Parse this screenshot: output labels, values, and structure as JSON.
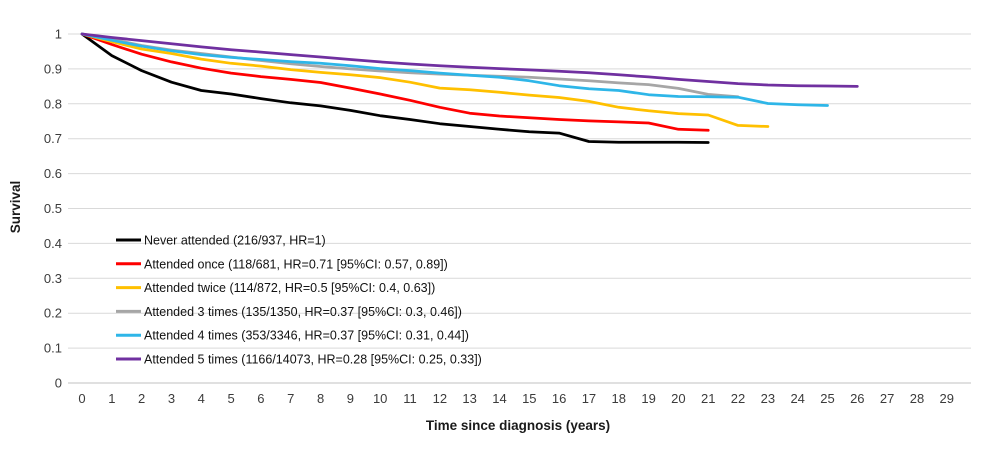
{
  "figure": {
    "background": "#ffffff",
    "gridline_color": "#d9d9d9",
    "axis_line_color": "#c0c0c0",
    "tick_label_color": "#3b3b3b"
  },
  "chart_data": {
    "type": "line",
    "title": "",
    "xlabel": "Time since diagnosis (years)",
    "ylabel": "Survival",
    "xlim": [
      0,
      29
    ],
    "ylim": [
      0,
      1
    ],
    "x_ticks": [
      0,
      1,
      2,
      3,
      4,
      5,
      6,
      7,
      8,
      9,
      10,
      11,
      12,
      13,
      14,
      15,
      16,
      17,
      18,
      19,
      20,
      21,
      22,
      23,
      24,
      25,
      26,
      27,
      28,
      29
    ],
    "y_ticks": [
      "0",
      "0.1",
      "0.2",
      "0.3",
      "0.4",
      "0.5",
      "0.6",
      "0.7",
      "0.8",
      "0.9",
      "1"
    ],
    "grid": "horizontal",
    "legend_position": "inside-left-middle",
    "x_step_years": 1,
    "series": [
      {
        "name": "Never attended (216/937, HR=1)",
        "color": "#000000",
        "x_start": 0,
        "values": [
          1,
          0.938,
          0.895,
          0.862,
          0.838,
          0.828,
          0.815,
          0.803,
          0.794,
          0.781,
          0.766,
          0.755,
          0.743,
          0.735,
          0.727,
          0.72,
          0.716,
          0.692,
          0.69,
          0.69,
          0.69,
          0.689
        ]
      },
      {
        "name": "Attended once (118/681, HR=0.71 [95%CI: 0.57, 0.89])",
        "color": "#fe0000",
        "x_start": 0,
        "values": [
          1,
          0.97,
          0.942,
          0.92,
          0.902,
          0.888,
          0.878,
          0.87,
          0.861,
          0.845,
          0.828,
          0.81,
          0.79,
          0.773,
          0.765,
          0.76,
          0.755,
          0.751,
          0.748,
          0.745,
          0.727,
          0.724
        ]
      },
      {
        "name": "Attended twice (114/872, HR=0.5 [95%CI: 0.4, 0.63])",
        "color": "#ffc000",
        "x_start": 0,
        "values": [
          1,
          0.978,
          0.957,
          0.944,
          0.928,
          0.916,
          0.908,
          0.898,
          0.89,
          0.883,
          0.875,
          0.862,
          0.845,
          0.84,
          0.833,
          0.825,
          0.818,
          0.807,
          0.79,
          0.78,
          0.772,
          0.768,
          0.738,
          0.735
        ]
      },
      {
        "name": "Attended 3 times (135/1350, HR=0.37 [95%CI: 0.3, 0.46])",
        "color": "#a6a6a6",
        "x_start": 0,
        "values": [
          1,
          0.985,
          0.967,
          0.954,
          0.944,
          0.934,
          0.924,
          0.915,
          0.907,
          0.9,
          0.894,
          0.889,
          0.885,
          0.882,
          0.879,
          0.876,
          0.871,
          0.866,
          0.86,
          0.855,
          0.844,
          0.827,
          0.82
        ]
      },
      {
        "name": "Attended 4 times (353/3346, HR=0.37 [95%CI: 0.31, 0.44])",
        "color": "#2eb6e8",
        "x_start": 0,
        "values": [
          1,
          0.982,
          0.965,
          0.952,
          0.941,
          0.933,
          0.927,
          0.921,
          0.916,
          0.909,
          0.901,
          0.895,
          0.888,
          0.882,
          0.876,
          0.866,
          0.852,
          0.843,
          0.838,
          0.826,
          0.821,
          0.82,
          0.819,
          0.801,
          0.797,
          0.795
        ]
      },
      {
        "name": "Attended 5 times (1166/14073, HR=0.28 [95%CI: 0.25, 0.33])",
        "color": "#7030a0",
        "x_start": 0,
        "values": [
          1,
          0.99,
          0.981,
          0.972,
          0.963,
          0.955,
          0.948,
          0.941,
          0.934,
          0.927,
          0.92,
          0.914,
          0.909,
          0.905,
          0.901,
          0.897,
          0.893,
          0.889,
          0.883,
          0.877,
          0.87,
          0.864,
          0.858,
          0.854,
          0.852,
          0.851,
          0.85
        ]
      }
    ]
  }
}
